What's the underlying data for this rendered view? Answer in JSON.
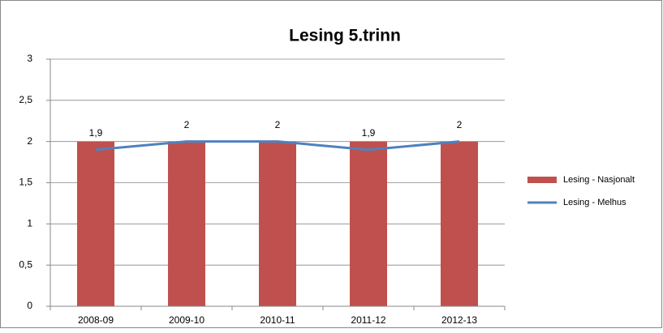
{
  "chart_data": {
    "type": "combo",
    "title": "Lesing 5.trinn",
    "categories": [
      "2008-09",
      "2009-10",
      "2010-11",
      "2011-12",
      "2012-13"
    ],
    "series": [
      {
        "name": "Lesing - Nasjonalt",
        "type": "bar",
        "color": "#c0504d",
        "values": [
          2,
          2,
          2,
          2,
          2
        ]
      },
      {
        "name": "Lesing - Melhus",
        "type": "line",
        "color": "#4f81bd",
        "values": [
          1.9,
          2,
          2,
          1.9,
          2
        ],
        "value_labels": [
          "1,9",
          "2",
          "2",
          "1,9",
          "2"
        ]
      }
    ],
    "ylim": [
      0,
      3
    ],
    "yticks": [
      0,
      {
        "value": 0.5,
        "label": "0,5"
      },
      1,
      {
        "value": 1.5,
        "label": "1,5"
      },
      2,
      {
        "value": 2.5,
        "label": "2,5"
      },
      3
    ],
    "grid": true,
    "legend": "right"
  }
}
